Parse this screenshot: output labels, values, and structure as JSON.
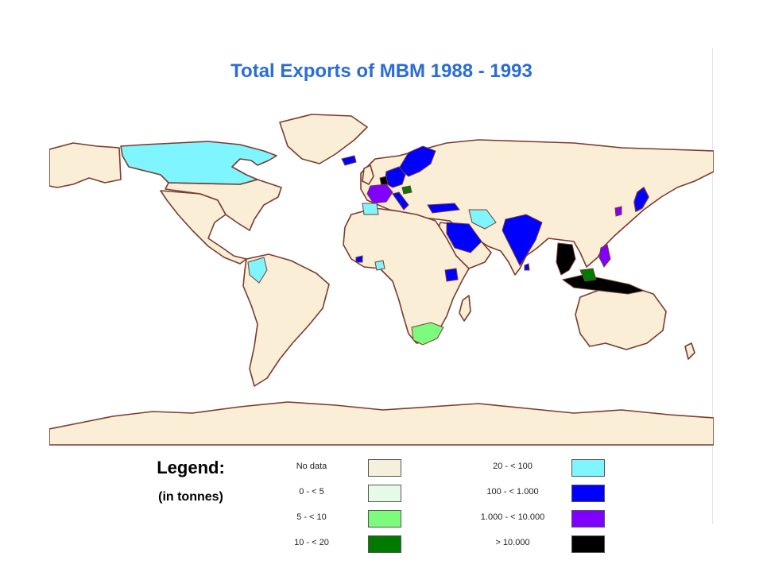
{
  "title": "Total Exports of MBM 1988 - 1993",
  "colors": {
    "ocean": "#ffffff",
    "land": "#fbeed6",
    "border": "#7a3b2e",
    "no_data": "#f3f1dc",
    "c0_5": "#e6fbe6",
    "c5_10": "#7dfb7d",
    "c10_20": "#007a00",
    "c20_100": "#7ff5ff",
    "c100_1000": "#0000ff",
    "c1000_10000": "#8000ff",
    "c10000": "#000000"
  },
  "legend": {
    "heading": "Legend:",
    "unit": "(in tonnes)",
    "items": [
      {
        "label": "No data",
        "color": "#f3f1dc"
      },
      {
        "label": "0 - < 5",
        "color": "#e6fbe6"
      },
      {
        "label": "5 - < 10",
        "color": "#7dfb7d"
      },
      {
        "label": "10 - < 20",
        "color": "#007a00"
      },
      {
        "label": "20 - < 100",
        "color": "#7ff5ff"
      },
      {
        "label": "100 - < 1.000",
        "color": "#0000ff"
      },
      {
        "label": "1.000 - < 10.000",
        "color": "#8000ff"
      },
      {
        "label": "> 10.000",
        "color": "#000000"
      }
    ]
  }
}
